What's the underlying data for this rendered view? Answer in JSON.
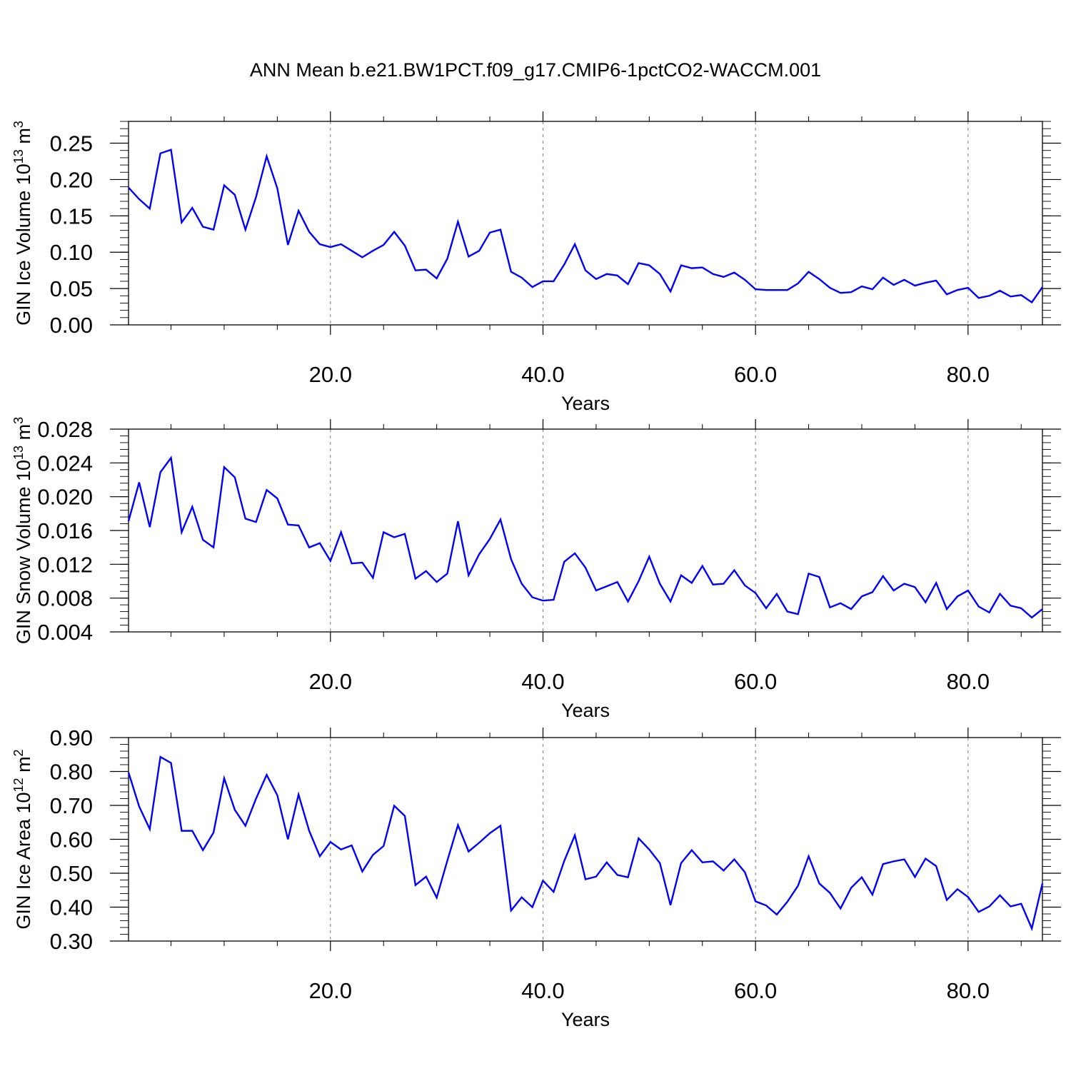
{
  "title": "ANN Mean b.e21.BW1PCT.f09_g17.CMIP6-1pctCO2-WACCM.001",
  "chart_data": [
    {
      "type": "line",
      "title": "ANN Mean b.e21.BW1PCT.f09_g17.CMIP6-1pctCO2-WACCM.001",
      "xlabel": "Years",
      "ylabel": "GIN Ice Volume 10",
      "ylabel_exp": "13",
      "ylabel_unit": " m",
      "ylabel_unit_exp": "3",
      "xlim": [
        1,
        87
      ],
      "ylim": [
        0.0,
        0.28
      ],
      "xticks": [
        20,
        40,
        60,
        80
      ],
      "xtick_labels": [
        "20.0",
        "40.0",
        "60.0",
        "80.0"
      ],
      "yticks": [
        0.0,
        0.05,
        0.1,
        0.15,
        0.2,
        0.25
      ],
      "ytick_labels": [
        "0.00",
        "0.05",
        "0.10",
        "0.15",
        "0.20",
        "0.25"
      ],
      "grid": "x-dashed",
      "color": "#0000ff",
      "x": [
        1,
        2,
        3,
        4,
        5,
        6,
        7,
        8,
        9,
        10,
        11,
        12,
        13,
        14,
        15,
        16,
        17,
        18,
        19,
        20,
        21,
        22,
        23,
        24,
        25,
        26,
        27,
        28,
        29,
        30,
        31,
        32,
        33,
        34,
        35,
        36,
        37,
        38,
        39,
        40,
        41,
        42,
        43,
        44,
        45,
        46,
        47,
        48,
        49,
        50,
        51,
        52,
        53,
        54,
        55,
        56,
        57,
        58,
        59,
        60,
        61,
        62,
        63,
        64,
        65,
        66,
        67,
        68,
        69,
        70,
        71,
        72,
        73,
        74,
        75,
        76,
        77,
        78,
        79,
        80,
        81,
        82,
        83,
        84,
        85,
        86,
        87
      ],
      "values": [
        0.189,
        0.173,
        0.16,
        0.236,
        0.241,
        0.141,
        0.161,
        0.135,
        0.131,
        0.192,
        0.179,
        0.131,
        0.176,
        0.232,
        0.188,
        0.11,
        0.157,
        0.128,
        0.111,
        0.107,
        0.111,
        0.102,
        0.093,
        0.102,
        0.11,
        0.128,
        0.109,
        0.075,
        0.076,
        0.064,
        0.091,
        0.142,
        0.094,
        0.102,
        0.127,
        0.131,
        0.073,
        0.065,
        0.052,
        0.06,
        0.06,
        0.083,
        0.111,
        0.075,
        0.063,
        0.07,
        0.068,
        0.056,
        0.085,
        0.082,
        0.07,
        0.046,
        0.082,
        0.078,
        0.079,
        0.07,
        0.066,
        0.072,
        0.062,
        0.049,
        0.048,
        0.048,
        0.048,
        0.057,
        0.073,
        0.063,
        0.051,
        0.044,
        0.045,
        0.053,
        0.049,
        0.065,
        0.055,
        0.062,
        0.054,
        0.058,
        0.061,
        0.042,
        0.048,
        0.051,
        0.037,
        0.04,
        0.047,
        0.039,
        0.041,
        0.031,
        0.052
      ]
    },
    {
      "type": "line",
      "xlabel": "Years",
      "ylabel": "GIN Snow Volume 10",
      "ylabel_exp": "13",
      "ylabel_unit": " m",
      "ylabel_unit_exp": "3",
      "xlim": [
        1,
        87
      ],
      "ylim": [
        0.004,
        0.028
      ],
      "xticks": [
        20,
        40,
        60,
        80
      ],
      "xtick_labels": [
        "20.0",
        "40.0",
        "60.0",
        "80.0"
      ],
      "yticks": [
        0.004,
        0.008,
        0.012,
        0.016,
        0.02,
        0.024,
        0.028
      ],
      "ytick_labels": [
        "0.004",
        "0.008",
        "0.012",
        "0.016",
        "0.020",
        "0.024",
        "0.028"
      ],
      "grid": "x-dashed",
      "color": "#0000ff",
      "x": [
        1,
        2,
        3,
        4,
        5,
        6,
        7,
        8,
        9,
        10,
        11,
        12,
        13,
        14,
        15,
        16,
        17,
        18,
        19,
        20,
        21,
        22,
        23,
        24,
        25,
        26,
        27,
        28,
        29,
        30,
        31,
        32,
        33,
        34,
        35,
        36,
        37,
        38,
        39,
        40,
        41,
        42,
        43,
        44,
        45,
        46,
        47,
        48,
        49,
        50,
        51,
        52,
        53,
        54,
        55,
        56,
        57,
        58,
        59,
        60,
        61,
        62,
        63,
        64,
        65,
        66,
        67,
        68,
        69,
        70,
        71,
        72,
        73,
        74,
        75,
        76,
        77,
        78,
        79,
        80,
        81,
        82,
        83,
        84,
        85,
        86,
        87
      ],
      "values": [
        0.0171,
        0.0217,
        0.0164,
        0.0229,
        0.0246,
        0.0158,
        0.0188,
        0.0149,
        0.014,
        0.0235,
        0.0223,
        0.0174,
        0.017,
        0.0208,
        0.0198,
        0.0167,
        0.0166,
        0.014,
        0.0145,
        0.0124,
        0.0158,
        0.0121,
        0.0122,
        0.0104,
        0.0158,
        0.0152,
        0.0156,
        0.0103,
        0.0112,
        0.0099,
        0.0109,
        0.0171,
        0.0107,
        0.0132,
        0.015,
        0.0173,
        0.0126,
        0.0097,
        0.0081,
        0.0077,
        0.0078,
        0.0123,
        0.0133,
        0.0116,
        0.0089,
        0.0094,
        0.0099,
        0.0076,
        0.01,
        0.0129,
        0.0097,
        0.0076,
        0.0107,
        0.0098,
        0.0118,
        0.0096,
        0.0097,
        0.0113,
        0.0095,
        0.0086,
        0.0068,
        0.0085,
        0.0064,
        0.0061,
        0.0109,
        0.0105,
        0.0069,
        0.0074,
        0.0067,
        0.0082,
        0.0087,
        0.0106,
        0.0089,
        0.0097,
        0.0093,
        0.0075,
        0.0098,
        0.0067,
        0.0082,
        0.0089,
        0.007,
        0.0063,
        0.0085,
        0.0071,
        0.0068,
        0.0057,
        0.0067
      ]
    },
    {
      "type": "line",
      "xlabel": "Years",
      "ylabel": "GIN Ice Area 10",
      "ylabel_exp": "12",
      "ylabel_unit": " m",
      "ylabel_unit_exp": "2",
      "xlim": [
        1,
        87
      ],
      "ylim": [
        0.3,
        0.9
      ],
      "xticks": [
        20,
        40,
        60,
        80
      ],
      "xtick_labels": [
        "20.0",
        "40.0",
        "60.0",
        "80.0"
      ],
      "yticks": [
        0.3,
        0.4,
        0.5,
        0.6,
        0.7,
        0.8,
        0.9
      ],
      "ytick_labels": [
        "0.30",
        "0.40",
        "0.50",
        "0.60",
        "0.70",
        "0.80",
        "0.90"
      ],
      "grid": "x-dashed",
      "color": "#0000ff",
      "x": [
        1,
        2,
        3,
        4,
        5,
        6,
        7,
        8,
        9,
        10,
        11,
        12,
        13,
        14,
        15,
        16,
        17,
        18,
        19,
        20,
        21,
        22,
        23,
        24,
        25,
        26,
        27,
        28,
        29,
        30,
        31,
        32,
        33,
        34,
        35,
        36,
        37,
        38,
        39,
        40,
        41,
        42,
        43,
        44,
        45,
        46,
        47,
        48,
        49,
        50,
        51,
        52,
        53,
        54,
        55,
        56,
        57,
        58,
        59,
        60,
        61,
        62,
        63,
        64,
        65,
        66,
        67,
        68,
        69,
        70,
        71,
        72,
        73,
        74,
        75,
        76,
        77,
        78,
        79,
        80,
        81,
        82,
        83,
        84,
        85,
        86,
        87
      ],
      "values": [
        0.797,
        0.697,
        0.63,
        0.843,
        0.825,
        0.625,
        0.625,
        0.568,
        0.62,
        0.78,
        0.687,
        0.64,
        0.72,
        0.79,
        0.73,
        0.6,
        0.732,
        0.625,
        0.55,
        0.592,
        0.57,
        0.582,
        0.505,
        0.554,
        0.58,
        0.699,
        0.669,
        0.465,
        0.49,
        0.428,
        0.537,
        0.642,
        0.564,
        0.59,
        0.618,
        0.64,
        0.39,
        0.429,
        0.4,
        0.478,
        0.445,
        0.536,
        0.612,
        0.482,
        0.49,
        0.532,
        0.495,
        0.488,
        0.603,
        0.57,
        0.53,
        0.406,
        0.53,
        0.568,
        0.532,
        0.535,
        0.508,
        0.541,
        0.503,
        0.417,
        0.405,
        0.378,
        0.416,
        0.463,
        0.55,
        0.47,
        0.442,
        0.396,
        0.457,
        0.488,
        0.437,
        0.527,
        0.535,
        0.541,
        0.489,
        0.543,
        0.521,
        0.421,
        0.453,
        0.43,
        0.386,
        0.402,
        0.435,
        0.402,
        0.41,
        0.337,
        0.47
      ]
    }
  ]
}
